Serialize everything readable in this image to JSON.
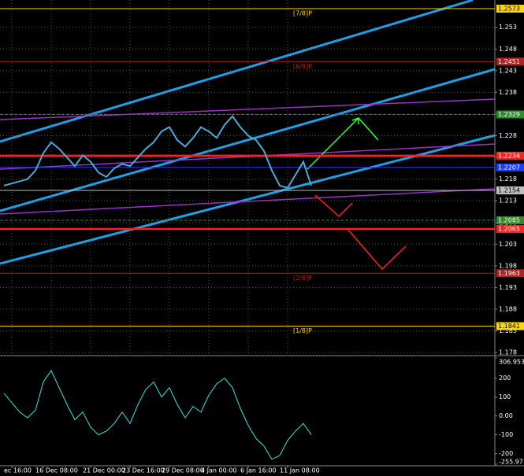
{
  "chart_data": [
    {
      "type": "line",
      "color": "#4ea9d8",
      "categories": [
        null,
        "ec 16:00",
        null,
        null,
        null,
        "16 Dec 08:00",
        null,
        null,
        null,
        null,
        null,
        "21 Dec 00:00",
        null,
        null,
        null,
        null,
        "23 Dec 16:00",
        null,
        null,
        null,
        null,
        "29 Dec 08:00",
        null,
        null,
        null,
        null,
        "4 Jan 00:00",
        null,
        null,
        null,
        null,
        "6 Jan 16:00",
        null,
        null,
        null,
        null,
        "11 Jan 08:00",
        null,
        null,
        null
      ],
      "values": [
        1.2165,
        1.217,
        1.2175,
        1.218,
        1.22,
        1.224,
        1.2265,
        1.225,
        1.223,
        1.221,
        1.2235,
        1.222,
        1.2195,
        1.2185,
        1.2205,
        1.2215,
        1.221,
        1.223,
        1.225,
        1.2265,
        1.229,
        1.23,
        1.227,
        1.2255,
        1.2275,
        1.23,
        1.229,
        1.2275,
        1.2305,
        1.2325,
        1.23,
        1.228,
        1.227,
        1.2245,
        1.22,
        1.2165,
        1.216,
        1.219,
        1.222,
        1.2165
      ],
      "ylim": [
        1.1773,
        1.2593
      ],
      "yticks": [
        1.253,
        1.248,
        1.243,
        1.238,
        1.233,
        1.228,
        1.223,
        1.218,
        1.213,
        1.208,
        1.203,
        1.198,
        1.193,
        1.188,
        1.183,
        1.178
      ],
      "levels": [
        {
          "value": 1.2573,
          "color": "#ffd700",
          "label": "[7/8]P"
        },
        {
          "value": 1.2451,
          "color": "#b22222",
          "label": "[6/8]P"
        },
        {
          "value": 1.2329,
          "color": "#2e8b2e"
        },
        {
          "value": 1.2234,
          "color": "#ff2020"
        },
        {
          "value": 1.2207,
          "color": "#1e3cff"
        },
        {
          "value": 1.2154,
          "color": "#c0c0c0"
        },
        {
          "value": 1.2085,
          "color": "#2e8b2e"
        },
        {
          "value": 1.2065,
          "color": "#ff2020"
        },
        {
          "value": 1.1963,
          "color": "#b22222",
          "label": "[2/8]P"
        },
        {
          "value": 1.1841,
          "color": "#ffd700",
          "label": "[1/8]P"
        }
      ],
      "grid": true
    },
    {
      "type": "line",
      "color": "#40e0e0",
      "values": [
        120,
        70,
        20,
        -10,
        30,
        180,
        240,
        150,
        60,
        -20,
        20,
        -60,
        -100,
        -80,
        -40,
        20,
        -40,
        60,
        140,
        180,
        100,
        150,
        60,
        -10,
        50,
        20,
        110,
        170,
        200,
        150,
        40,
        -50,
        -120,
        -160,
        -230,
        -210,
        -130,
        -80,
        -40,
        -100
      ],
      "ylim": [
        -255.9716,
        306.953
      ],
      "yticks": [
        306.953,
        200,
        100,
        {
          "value": 0,
          "label": "0.00"
        },
        -100,
        -200,
        -255.9716
      ]
    }
  ]
}
